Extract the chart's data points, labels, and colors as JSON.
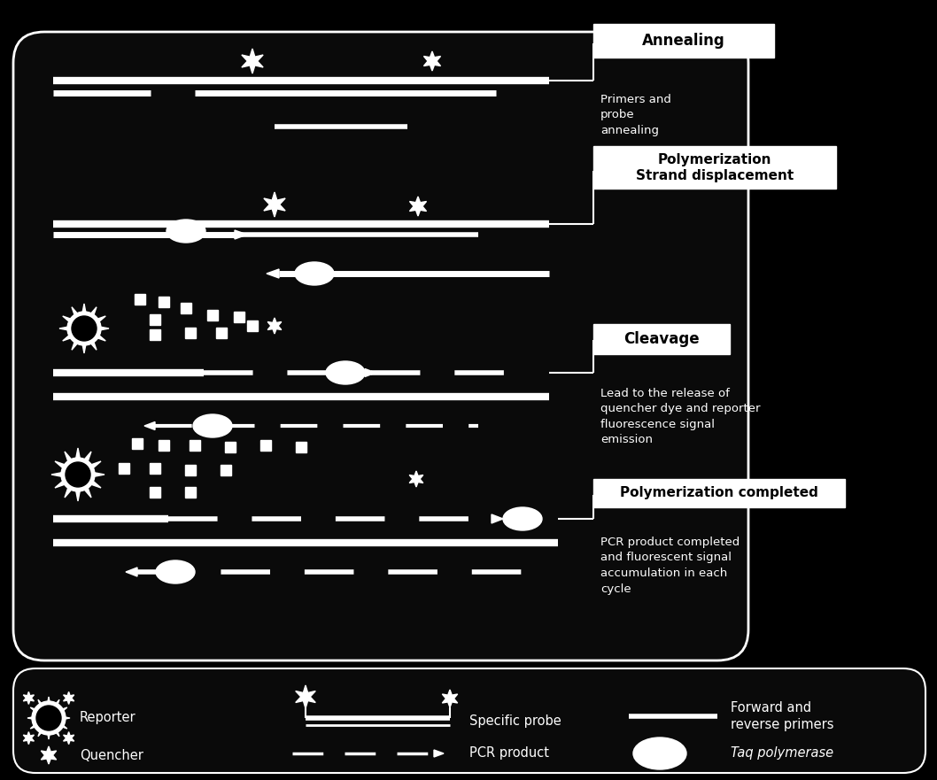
{
  "bg_color": "#000000",
  "main_bg": "#0d0d0d",
  "white": "#ffffff",
  "black": "#000000",
  "sections": [
    {
      "label": "Annealing",
      "sublabel": "Primers and\nprobe\nannealing"
    },
    {
      "label": "Polymerization\nStrand displacement",
      "sublabel": ""
    },
    {
      "label": "Cleavage",
      "sublabel": "Lead to the release of\nquencher dye and reporter\nfluorescence signal\nemission"
    },
    {
      "label": "Polymerization completed",
      "sublabel": "PCR product completed\nand fluorescent signal\naccumulation in each\ncycle"
    }
  ]
}
